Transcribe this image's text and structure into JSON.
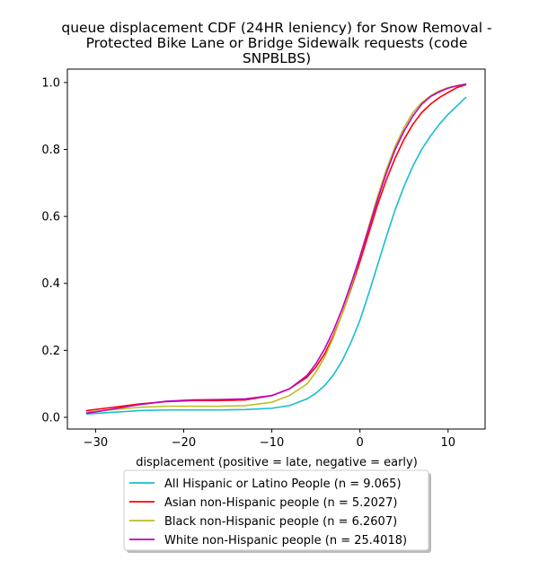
{
  "chart_data": {
    "type": "line",
    "title": [
      "queue displacement CDF (24HR leniency) for Snow Removal -",
      "Protected Bike Lane or Bridge Sidewalk  requests (code",
      "SNPBLBS)"
    ],
    "xlabel": "displacement (positive = late, negative = early)",
    "ylabel": "",
    "xlim": [
      -33.2,
      14.2
    ],
    "ylim": [
      -0.035,
      1.04
    ],
    "xticks": [
      {
        "value": -30,
        "label": "−30"
      },
      {
        "value": -20,
        "label": "−20"
      },
      {
        "value": -10,
        "label": "−10"
      },
      {
        "value": 0,
        "label": "0"
      },
      {
        "value": 10,
        "label": "10"
      }
    ],
    "yticks": [
      {
        "value": 0.0,
        "label": "0.0"
      },
      {
        "value": 0.2,
        "label": "0.2"
      },
      {
        "value": 0.4,
        "label": "0.4"
      },
      {
        "value": 0.6,
        "label": "0.6"
      },
      {
        "value": 0.8,
        "label": "0.8"
      },
      {
        "value": 1.0,
        "label": "1.0"
      }
    ],
    "grid": false,
    "legend_position": "bottom-center",
    "series": [
      {
        "name": "All Hispanic or Latino People (n = 9.065)",
        "color": "#17becf",
        "x": [
          -31,
          -28,
          -25,
          -22,
          -19,
          -16,
          -13,
          -10,
          -8,
          -6,
          -5,
          -4,
          -3,
          -2,
          -1,
          0,
          1,
          2,
          3,
          4,
          5,
          6,
          7,
          8,
          9,
          10,
          11,
          12
        ],
        "y": [
          0.01,
          0.015,
          0.02,
          0.022,
          0.022,
          0.022,
          0.023,
          0.027,
          0.035,
          0.055,
          0.072,
          0.095,
          0.127,
          0.17,
          0.225,
          0.29,
          0.37,
          0.455,
          0.54,
          0.62,
          0.69,
          0.75,
          0.8,
          0.84,
          0.875,
          0.905,
          0.93,
          0.955
        ]
      },
      {
        "name": "Asian non-Hispanic people (n = 5.2027)",
        "color": "#ff0000",
        "x": [
          -31,
          -28,
          -25,
          -22,
          -19,
          -16,
          -13,
          -10,
          -8,
          -6,
          -5,
          -4,
          -3,
          -2,
          -1,
          0,
          1,
          2,
          3,
          4,
          5,
          6,
          7,
          8,
          9,
          10,
          11,
          12
        ],
        "y": [
          0.02,
          0.03,
          0.04,
          0.047,
          0.05,
          0.05,
          0.052,
          0.065,
          0.085,
          0.12,
          0.15,
          0.19,
          0.245,
          0.31,
          0.385,
          0.465,
          0.55,
          0.635,
          0.71,
          0.775,
          0.83,
          0.875,
          0.91,
          0.935,
          0.955,
          0.97,
          0.985,
          0.993
        ]
      },
      {
        "name": "Black non-Hispanic people (n = 6.2607)",
        "color": "#bcbd22",
        "x": [
          -31,
          -28,
          -25,
          -22,
          -19,
          -16,
          -13,
          -10,
          -8,
          -6,
          -5,
          -4,
          -3,
          -2,
          -1,
          0,
          1,
          2,
          3,
          4,
          5,
          6,
          7,
          8,
          9,
          10,
          11,
          12
        ],
        "y": [
          0.015,
          0.023,
          0.03,
          0.033,
          0.033,
          0.033,
          0.035,
          0.045,
          0.065,
          0.1,
          0.135,
          0.18,
          0.24,
          0.31,
          0.39,
          0.48,
          0.57,
          0.66,
          0.74,
          0.81,
          0.865,
          0.91,
          0.94,
          0.96,
          0.975,
          0.985,
          0.99,
          0.995
        ]
      },
      {
        "name": "White non-Hispanic people (n = 25.4018)",
        "color": "#bf00bf",
        "x": [
          -31,
          -28,
          -25,
          -22,
          -19,
          -16,
          -13,
          -10,
          -8,
          -6,
          -5,
          -4,
          -3,
          -2,
          -1,
          0,
          1,
          2,
          3,
          4,
          5,
          6,
          7,
          8,
          9,
          10,
          11,
          12
        ],
        "y": [
          0.012,
          0.025,
          0.038,
          0.048,
          0.052,
          0.053,
          0.055,
          0.065,
          0.085,
          0.125,
          0.16,
          0.205,
          0.26,
          0.325,
          0.4,
          0.48,
          0.565,
          0.65,
          0.73,
          0.8,
          0.855,
          0.9,
          0.935,
          0.958,
          0.972,
          0.983,
          0.99,
          0.995
        ]
      }
    ]
  }
}
